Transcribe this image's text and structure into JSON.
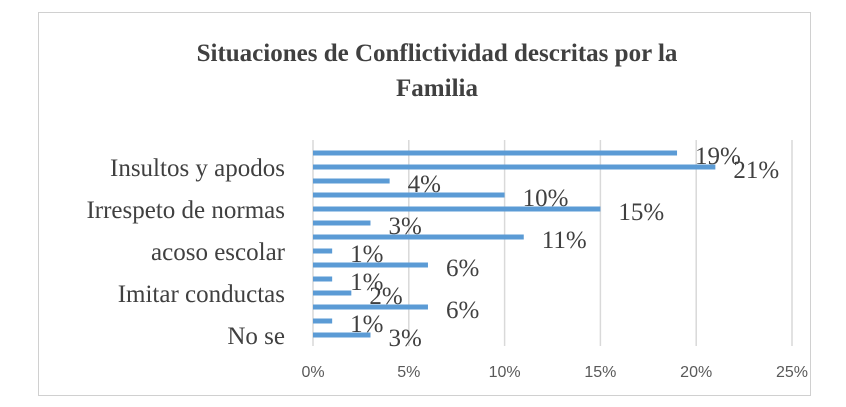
{
  "chart_data": {
    "type": "bar",
    "orientation": "horizontal",
    "title": "Situaciones de Conflictividad descritas por la Familia",
    "title_lines": [
      "Situaciones de Conflictividad descritas por la",
      "Familia"
    ],
    "categories_top_to_bottom": [
      "",
      "Insultos y apodos",
      "",
      "",
      "Irrespeto de normas",
      "",
      "",
      "acoso escolar",
      "",
      "",
      "Imitar conductas",
      "",
      "",
      "No se"
    ],
    "values": [
      19,
      21,
      4,
      10,
      15,
      3,
      11,
      1,
      6,
      1,
      2,
      6,
      1,
      3
    ],
    "data_labels": [
      "19%",
      "21%",
      "4%",
      "10%",
      "15%",
      "3%",
      "11%",
      "1%",
      "6%",
      "1%",
      "2%",
      "6%",
      "1%",
      "3%"
    ],
    "xlim": [
      0,
      25
    ],
    "x_ticks": [
      "0%",
      "5%",
      "10%",
      "15%",
      "20%",
      "25%"
    ],
    "xlabel": "",
    "ylabel": "",
    "grid": true,
    "legend": "none",
    "bar_color": "#5b9bd5"
  }
}
